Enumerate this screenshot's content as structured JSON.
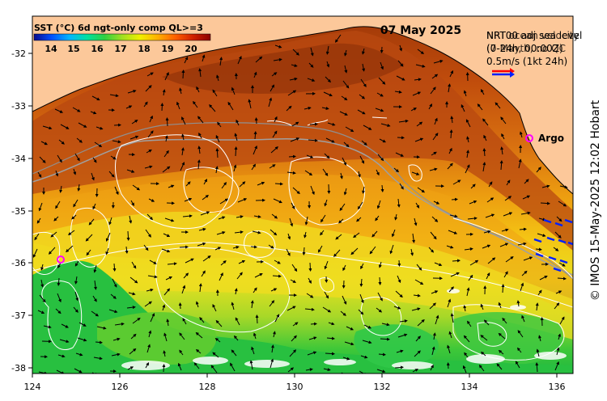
{
  "title_left": "SST (°C) 6d ngt-only comp QL>=3",
  "date": "07 May 2025",
  "colorbar": {
    "ticks": [
      "14",
      "15",
      "16",
      "17",
      "18",
      "19",
      "20"
    ],
    "colors": [
      "#0a0a8c",
      "#0050ff",
      "#00b4ff",
      "#00e0a0",
      "#30d040",
      "#a0e020",
      "#f0f000",
      "#ffb000",
      "#ff6000",
      "#d02000",
      "#8c0000"
    ]
  },
  "legend": {
    "line1a": "NRT00 adj sea level",
    "line1b": "NRT ocean velocity",
    "line2a": "(0-24h, 00:00Z)",
    "line2b": "(7-Mayth, no QC",
    "scale_label": "0.5m/s (1kt 24h)"
  },
  "argo_label": "Argo",
  "credit": "© IMOS 15-May-2025 12:02 Hobart",
  "axes": {
    "lon_ticks": [
      "124",
      "126",
      "128",
      "130",
      "132",
      "134",
      "136"
    ],
    "lat_ticks": [
      "-32",
      "-33",
      "-34",
      "-35",
      "-36",
      "-37",
      "-38"
    ]
  },
  "colors": {
    "land": "#fcc89a",
    "warm_dark": "#b04010",
    "warm": "#d86a10",
    "mid": "#f0a010",
    "yellow": "#f0d820",
    "cool": "#7cd030",
    "green": "#20c040",
    "argo": "#ff00ff",
    "arrow_red": "#ff0000",
    "arrow_blue": "#0020ff"
  }
}
